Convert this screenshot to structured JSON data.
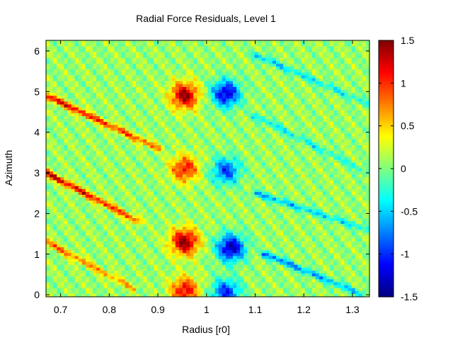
{
  "chart_data": {
    "type": "heatmap",
    "title": "Radial Force Residuals, Level 1",
    "xlabel": "Radius [r0]",
    "ylabel": "Azimuth",
    "xlim": [
      0.67,
      1.335
    ],
    "ylim": [
      -0.05,
      6.26
    ],
    "xticks": [
      "0.7",
      "0.8",
      "0.9",
      "1",
      "1.1",
      "1.2",
      "1.3"
    ],
    "xtick_values": [
      0.7,
      0.8,
      0.9,
      1.0,
      1.1,
      1.2,
      1.3
    ],
    "yticks": [
      "0",
      "1",
      "2",
      "3",
      "4",
      "5",
      "6"
    ],
    "ytick_values": [
      0,
      1,
      2,
      3,
      4,
      5,
      6
    ],
    "colorbar": {
      "colormap": "jet",
      "range": [
        -1.5,
        1.5
      ],
      "ticks": [
        "1.5",
        "1",
        "0.5",
        "0",
        "-0.5",
        "-1",
        "-1.5"
      ],
      "tick_values": [
        1.5,
        1,
        0.5,
        0,
        -0.5,
        -1,
        -1.5
      ]
    },
    "background_value": 0.08,
    "features": {
      "hot_blobs": [
        {
          "radius": 0.955,
          "azimuth": 4.9,
          "value": 1.35
        },
        {
          "radius": 0.955,
          "azimuth": 3.1,
          "value": 1.0
        },
        {
          "radius": 0.955,
          "azimuth": 1.3,
          "value": 1.4
        },
        {
          "radius": 0.955,
          "azimuth": 0.1,
          "value": 1.1
        }
      ],
      "cold_blobs": [
        {
          "radius": 1.04,
          "azimuth": 4.95,
          "value": -1.35
        },
        {
          "radius": 1.04,
          "azimuth": 3.05,
          "value": -1.0
        },
        {
          "radius": 1.05,
          "azimuth": 1.15,
          "value": -1.45
        },
        {
          "radius": 1.04,
          "azimuth": 0.05,
          "value": -1.1
        }
      ],
      "diagonal_stripes": [
        {
          "start": [
            0.67,
            4.9
          ],
          "end": [
            0.9,
            3.6
          ],
          "value": 1.2
        },
        {
          "start": [
            0.67,
            3.0
          ],
          "end": [
            0.86,
            1.8
          ],
          "value": 1.3
        },
        {
          "start": [
            0.67,
            1.3
          ],
          "end": [
            0.85,
            0.15
          ],
          "value": 0.8
        },
        {
          "start": [
            1.1,
            5.9
          ],
          "end": [
            1.33,
            4.7
          ],
          "value": -0.6
        },
        {
          "start": [
            1.1,
            4.4
          ],
          "end": [
            1.33,
            3.0
          ],
          "value": -0.5
        },
        {
          "start": [
            1.1,
            2.5
          ],
          "end": [
            1.33,
            1.6
          ],
          "value": -0.7
        },
        {
          "start": [
            1.12,
            1.0
          ],
          "end": [
            1.32,
            0.0
          ],
          "value": -0.9
        }
      ]
    }
  }
}
